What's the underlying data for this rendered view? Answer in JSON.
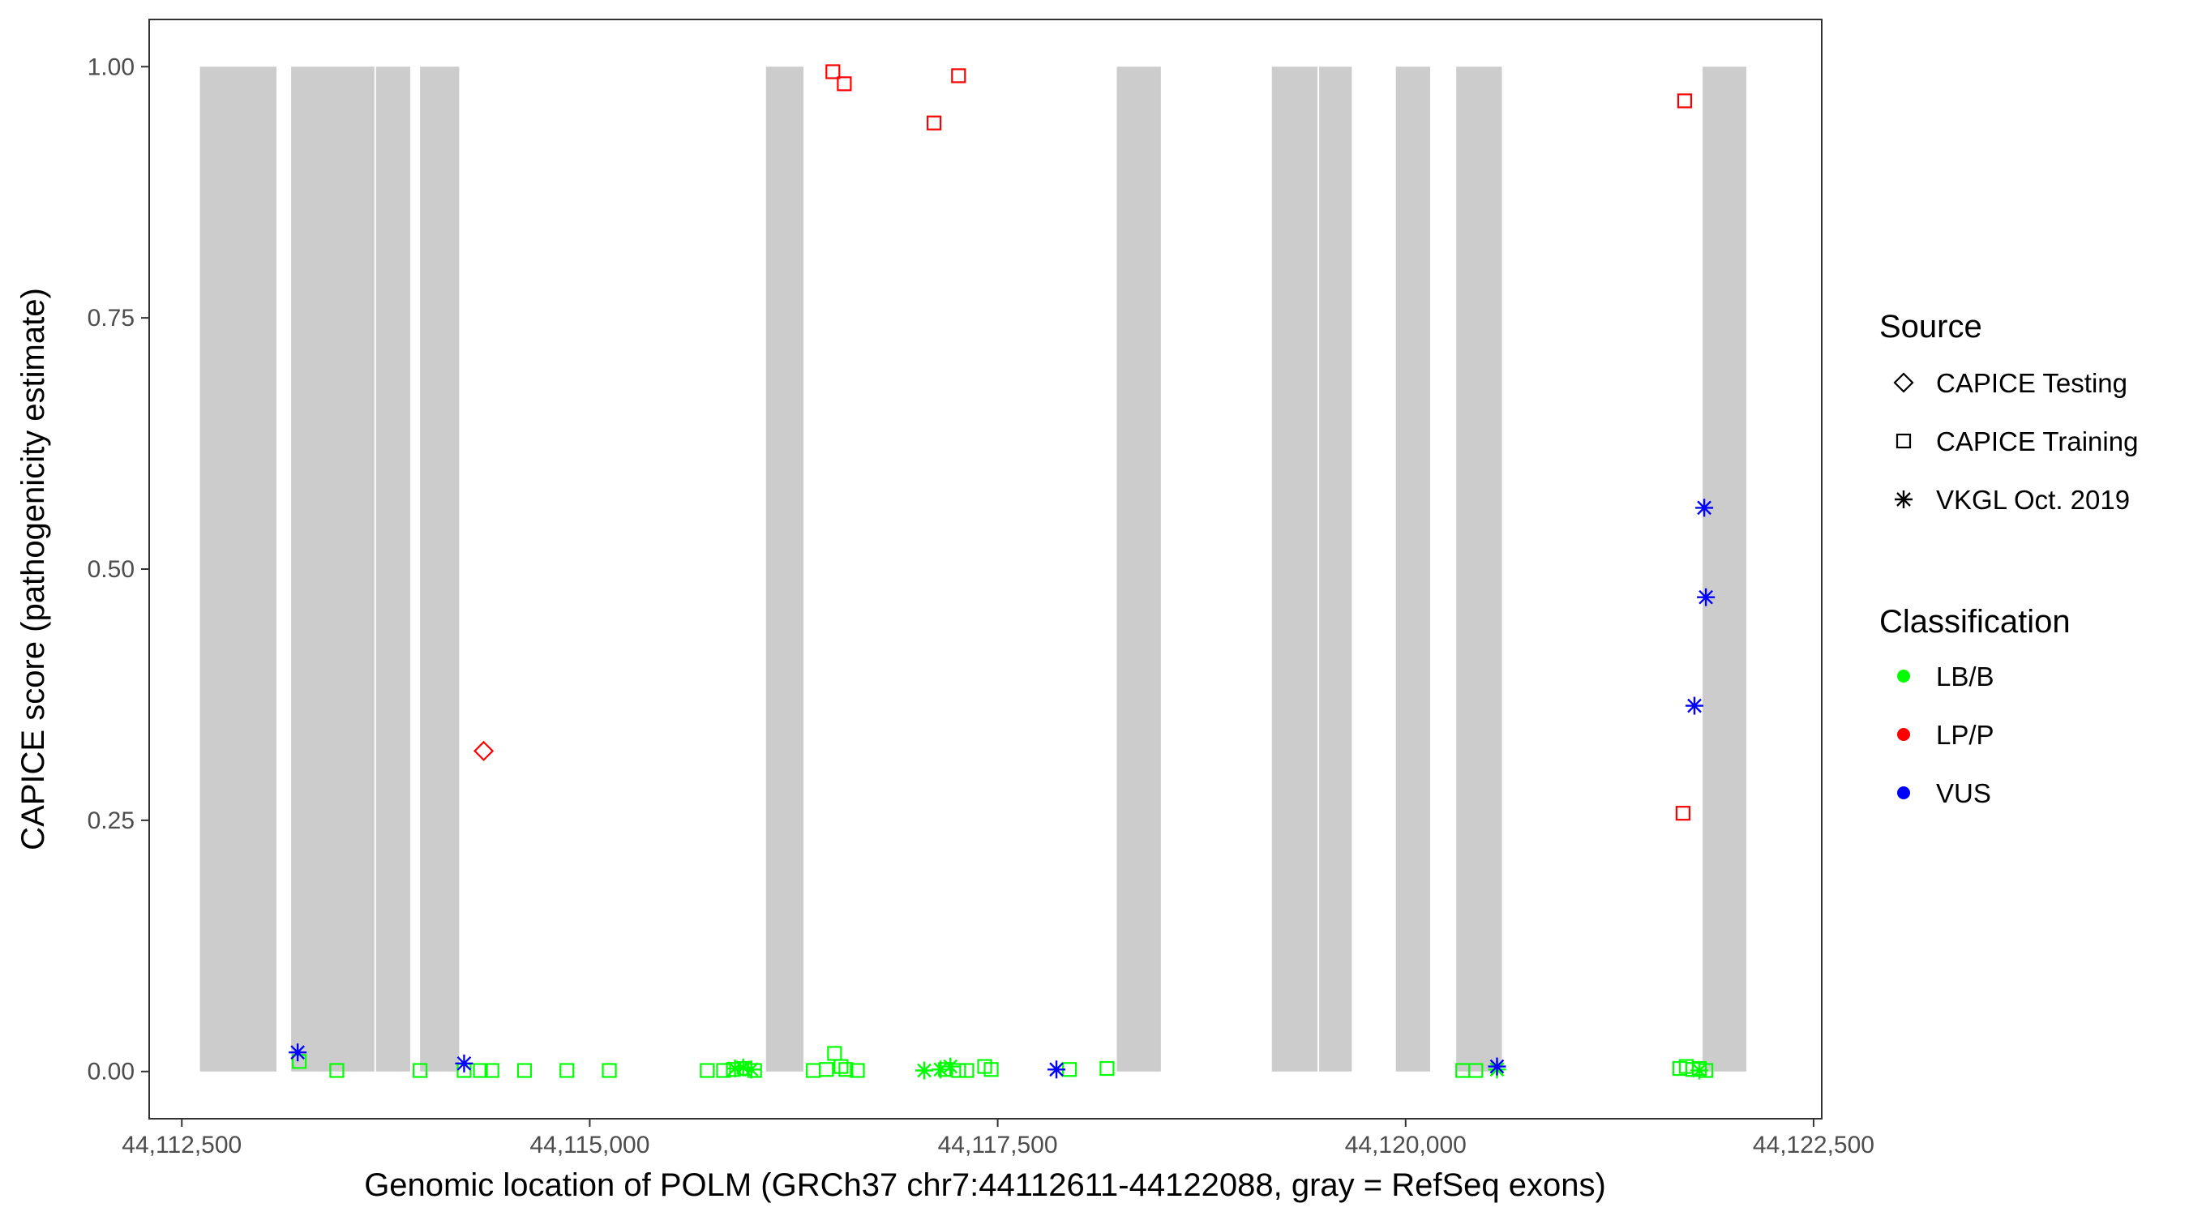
{
  "chart_data": {
    "type": "scatter",
    "title": "",
    "xlabel": "Genomic location of POLM (GRCh37 chr7:44112611-44122088, gray = RefSeq exons)",
    "ylabel": "CAPICE score (pathogenicity estimate)",
    "xlim": [
      44112300,
      44122550
    ],
    "ylim": [
      -0.047,
      1.047
    ],
    "x_ticks": [
      44112500,
      44115000,
      44117500,
      44120000,
      44122500
    ],
    "x_tick_labels": [
      "44,112,500",
      "44,115,000",
      "44,117,500",
      "44,120,000",
      "44,122,500"
    ],
    "y_ticks": [
      0,
      0.25,
      0.5,
      0.75,
      1.0
    ],
    "y_tick_labels": [
      "0.00",
      "0.25",
      "0.50",
      "0.75",
      "1.00"
    ],
    "grid": false,
    "exon_color": "#cccccc",
    "exons": [
      [
        44112611,
        44113080
      ],
      [
        44113170,
        44113680
      ],
      [
        44113690,
        44113900
      ],
      [
        44113960,
        44114200
      ],
      [
        44116080,
        44116310
      ],
      [
        44118230,
        44118500
      ],
      [
        44119180,
        44119460
      ],
      [
        44119470,
        44119670
      ],
      [
        44119940,
        44120150
      ],
      [
        44120310,
        44120590
      ],
      [
        44121820,
        44122088
      ]
    ],
    "legend": {
      "position": "right",
      "source_title": "Source",
      "source_items": [
        {
          "label": "CAPICE Testing",
          "shape": "diamond"
        },
        {
          "label": "CAPICE Training",
          "shape": "square"
        },
        {
          "label": "VKGL Oct. 2019",
          "shape": "asterisk"
        }
      ],
      "class_title": "Classification",
      "class_items": [
        {
          "label": "LB/B",
          "color": "#00ff00"
        },
        {
          "label": "LP/P",
          "color": "#ff0000"
        },
        {
          "label": "VUS",
          "color": "#0000ff"
        }
      ]
    },
    "series": [
      {
        "source": "CAPICE Training",
        "classification": "LP/P",
        "points": [
          [
            44116490,
            0.995
          ],
          [
            44116560,
            0.983
          ],
          [
            44117110,
            0.944
          ],
          [
            44117260,
            0.991
          ],
          [
            44121710,
            0.966
          ],
          [
            44121700,
            0.257
          ]
        ]
      },
      {
        "source": "CAPICE Testing",
        "classification": "LP/P",
        "points": [
          [
            44114350,
            0.319
          ]
        ]
      },
      {
        "source": "CAPICE Training",
        "classification": "LB/B",
        "points": [
          [
            44113220,
            0.01
          ],
          [
            44113450,
            0.001
          ],
          [
            44113960,
            0.001
          ],
          [
            44114230,
            0.001
          ],
          [
            44114330,
            0.001
          ],
          [
            44114400,
            0.001
          ],
          [
            44114600,
            0.001
          ],
          [
            44114860,
            0.001
          ],
          [
            44115120,
            0.001
          ],
          [
            44115720,
            0.001
          ],
          [
            44115820,
            0.001
          ],
          [
            44115880,
            0.002
          ],
          [
            44115950,
            0.003
          ],
          [
            44116010,
            0.001
          ],
          [
            44116370,
            0.001
          ],
          [
            44116450,
            0.002
          ],
          [
            44116500,
            0.018
          ],
          [
            44116540,
            0.005
          ],
          [
            44116570,
            0.002
          ],
          [
            44116640,
            0.001
          ],
          [
            44117180,
            0.002
          ],
          [
            44117260,
            0.001
          ],
          [
            44117310,
            0.001
          ],
          [
            44117420,
            0.005
          ],
          [
            44117460,
            0.002
          ],
          [
            44117940,
            0.002
          ],
          [
            44118170,
            0.003
          ],
          [
            44120350,
            0.001
          ],
          [
            44120430,
            0.001
          ],
          [
            44121680,
            0.003
          ],
          [
            44121720,
            0.005
          ],
          [
            44121760,
            0.002
          ],
          [
            44121800,
            0.003
          ],
          [
            44121840,
            0.001
          ]
        ]
      },
      {
        "source": "VKGL Oct. 2019",
        "classification": "LB/B",
        "points": [
          [
            44115890,
            0.003
          ],
          [
            44115940,
            0.004
          ],
          [
            44115990,
            0.002
          ],
          [
            44117050,
            0.001
          ],
          [
            44117150,
            0.002
          ],
          [
            44117210,
            0.005
          ],
          [
            44120560,
            0.002
          ],
          [
            44121800,
            0.001
          ]
        ]
      },
      {
        "source": "VKGL Oct. 2019",
        "classification": "VUS",
        "points": [
          [
            44113210,
            0.019
          ],
          [
            44114230,
            0.008
          ],
          [
            44117860,
            0.002
          ],
          [
            44120560,
            0.005
          ],
          [
            44121770,
            0.364
          ],
          [
            44121840,
            0.472
          ],
          [
            44121830,
            0.561
          ]
        ]
      }
    ]
  }
}
